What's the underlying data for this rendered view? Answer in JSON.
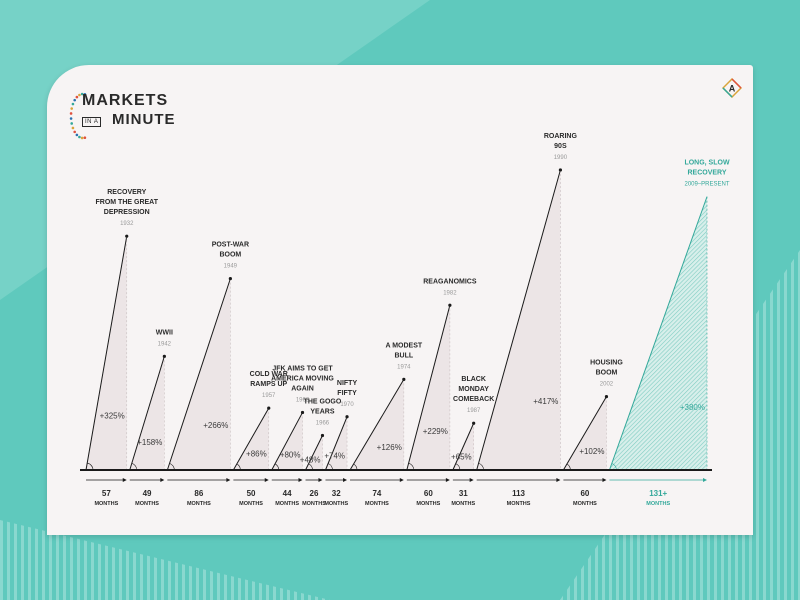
{
  "logo": {
    "line1": "MARKETS",
    "line2_small": "IN A",
    "line2": "MINUTE"
  },
  "brand_icon": "a-diamond-logo-icon",
  "colors": {
    "background": "#5fc9bd",
    "card": "#f7f4f4",
    "accent": "#33a89a",
    "shade": "#ece5e6",
    "ink": "#1a1a1a"
  },
  "chart_data": {
    "type": "bar",
    "title": "",
    "axis_note": "",
    "markets": [
      {
        "name_lines": [
          "RECOVERY",
          "FROM THE GREAT",
          "DEPRESSION"
        ],
        "year": "1932",
        "gain_label": "+325%",
        "gain_pct": 325,
        "months": 57,
        "duration_label": "57"
      },
      {
        "name_lines": [
          "WWII"
        ],
        "year": "1942",
        "gain_label": "+158%",
        "gain_pct": 158,
        "months": 49,
        "duration_label": "49"
      },
      {
        "name_lines": [
          "POST-WAR",
          "BOOM"
        ],
        "year": "1949",
        "gain_label": "+266%",
        "gain_pct": 266,
        "months": 86,
        "duration_label": "86"
      },
      {
        "name_lines": [
          "COLD WAR",
          "RAMPS UP"
        ],
        "year": "1957",
        "gain_label": "+86%",
        "gain_pct": 86,
        "months": 50,
        "duration_label": "50"
      },
      {
        "name_lines": [
          "JFK AIMS TO GET",
          "AMERICA MOVING",
          "AGAIN"
        ],
        "year": "1962",
        "gain_label": "+80%",
        "gain_pct": 80,
        "months": 44,
        "duration_label": "44"
      },
      {
        "name_lines": [
          "THE GOGO",
          "YEARS"
        ],
        "year": "1966",
        "gain_label": "+48%",
        "gain_pct": 48,
        "months": 26,
        "duration_label": "26"
      },
      {
        "name_lines": [
          "NIFTY",
          "FIFTY"
        ],
        "year": "1970",
        "gain_label": "+74%",
        "gain_pct": 74,
        "months": 32,
        "duration_label": "32"
      },
      {
        "name_lines": [
          "A MODEST",
          "BULL"
        ],
        "year": "1974",
        "gain_label": "+126%",
        "gain_pct": 126,
        "months": 74,
        "duration_label": "74"
      },
      {
        "name_lines": [
          "REAGANOMICS"
        ],
        "year": "1982",
        "gain_label": "+229%",
        "gain_pct": 229,
        "months": 60,
        "duration_label": "60"
      },
      {
        "name_lines": [
          "BLACK",
          "MONDAY",
          "COMEBACK"
        ],
        "year": "1987",
        "gain_label": "+65%",
        "gain_pct": 65,
        "months": 31,
        "duration_label": "31"
      },
      {
        "name_lines": [
          "ROARING",
          "90S"
        ],
        "year": "1990",
        "gain_label": "+417%",
        "gain_pct": 417,
        "months": 113,
        "duration_label": "113"
      },
      {
        "name_lines": [
          "HOUSING",
          "BOOM"
        ],
        "year": "2002",
        "gain_label": "+102%",
        "gain_pct": 102,
        "months": 60,
        "duration_label": "60"
      },
      {
        "name_lines": [
          "LONG, SLOW",
          "RECOVERY"
        ],
        "year": "2009–PRESENT",
        "gain_label": "+380%",
        "gain_pct": 380,
        "months": 131,
        "duration_label": "131+",
        "current": true
      }
    ],
    "unit_label": "MONTHS"
  }
}
